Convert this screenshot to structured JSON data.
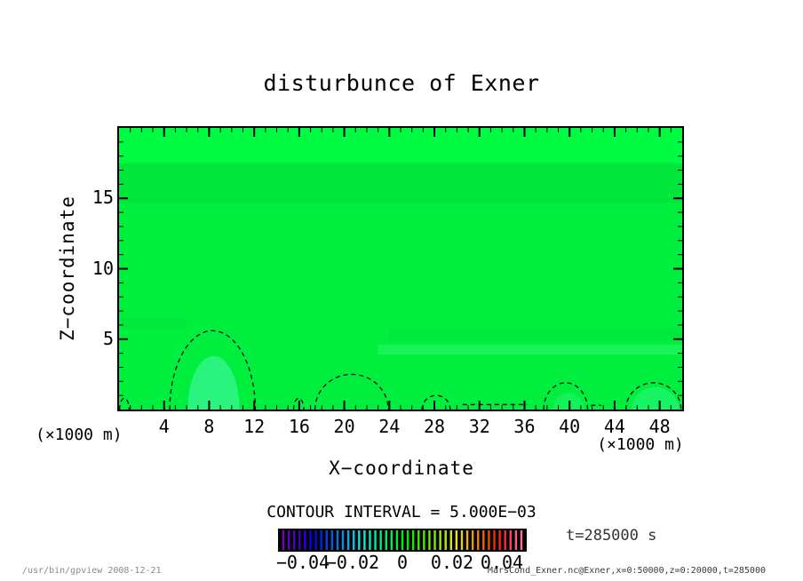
{
  "title": "disturbunce of Exner",
  "axes": {
    "x": {
      "label": "X−coordinate",
      "unit": "(×1000 m)"
    },
    "z": {
      "label": "Z−coordinate",
      "unit": "(×1000 m)"
    }
  },
  "contour_note": "CONTOUR INTERVAL = 5.000E−03",
  "time_label": "t=285000 s",
  "footer": {
    "left": "/usr/bin/gpview  2008-12-21",
    "right": "MarsCond_Exner.nc@Exner,x=0:50000,z=0:20000,t=285000"
  },
  "chart_data": {
    "type": "filled-contour",
    "title": "disturbunce of Exner",
    "xlabel": "X−coordinate",
    "ylabel": "Z−coordinate",
    "x_unit": "(×1000 m)",
    "z_unit": "(×1000 m)",
    "xlim": [
      0,
      50
    ],
    "ylim": [
      0,
      20
    ],
    "x_major_ticks": [
      4,
      8,
      12,
      16,
      20,
      24,
      28,
      32,
      36,
      40,
      44,
      48
    ],
    "x_minor_step": 1,
    "z_major_ticks": [
      5,
      10,
      15
    ],
    "z_minor_step": 1,
    "contour_interval": 0.005,
    "time_seconds": 285000,
    "field_note": "Exner disturbance is ~0 (green) over nearly the whole domain; dashed negative contours hug the bottom boundary",
    "style": {
      "base_color": "#00ef3e",
      "frame_color": "#000000",
      "contour_color": "#000000",
      "background": "#ffffff"
    },
    "shading_bands": [
      {
        "x1": 0,
        "x2": 50,
        "z1": 17.5,
        "z2": 20,
        "color": "#00fb43"
      },
      {
        "x1": 0,
        "x2": 50,
        "z1": 14.7,
        "z2": 17.5,
        "color": "#00e63b"
      },
      {
        "x1": 24,
        "x2": 50,
        "z1": 4.9,
        "z2": 5.7,
        "color": "#00e83c"
      },
      {
        "x1": 23,
        "x2": 50,
        "z1": 3.9,
        "z2": 4.6,
        "color": "#17f457"
      },
      {
        "x1": 0,
        "x2": 6,
        "z1": 5.8,
        "z2": 6.5,
        "color": "#00e83c"
      }
    ],
    "light_patches": [
      {
        "cx": 8.4,
        "cz": 0,
        "rx": 2.3,
        "rz": 3.8,
        "color": "#2af47e"
      },
      {
        "cx": 47.6,
        "cz": 0,
        "rx": 2.1,
        "rz": 1.6,
        "color": "#16f363"
      },
      {
        "cx": 39.9,
        "cz": 0,
        "rx": 1.4,
        "rz": 1.2,
        "color": "#12f158"
      }
    ],
    "negative_contours": [
      {
        "x1": 0.05,
        "x2": 0.9,
        "peak_z": 0.8
      },
      {
        "x1": 4.5,
        "x2": 12.1,
        "peak_z": 5.6
      },
      {
        "x1": 15.5,
        "x2": 16.4,
        "peak_z": 0.8
      },
      {
        "x1": 17.4,
        "x2": 23.9,
        "peak_z": 2.5
      },
      {
        "x1": 26.9,
        "x2": 29.4,
        "peak_z": 1.0
      },
      {
        "x1": 37.7,
        "x2": 41.6,
        "peak_z": 1.9
      },
      {
        "x1": 45.0,
        "x2": 49.9,
        "peak_z": 1.9
      }
    ],
    "dashed_segments": [
      {
        "x1": 30.5,
        "x2": 36.2,
        "z": 0.35
      },
      {
        "x1": 41.9,
        "x2": 42.8,
        "z": 0.3
      }
    ],
    "colorbar": {
      "min": -0.05,
      "max": 0.05,
      "stripe_count": 45,
      "background": "#000000",
      "ticks": [
        {
          "value": -0.04,
          "label": "−0.04"
        },
        {
          "value": -0.02,
          "label": "−0.02"
        },
        {
          "value": 0,
          "label": "0"
        },
        {
          "value": 0.02,
          "label": "0.02"
        },
        {
          "value": 0.04,
          "label": "0.04"
        }
      ]
    }
  }
}
